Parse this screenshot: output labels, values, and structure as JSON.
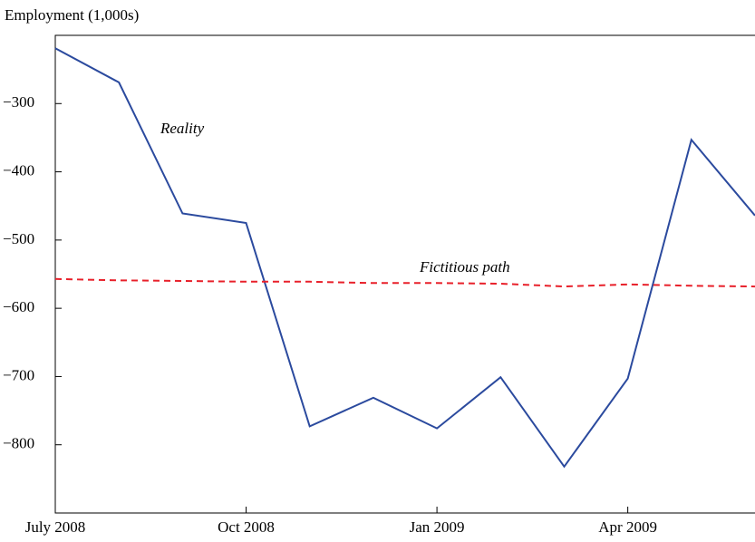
{
  "chart_data": {
    "type": "line",
    "y_axis_label": "Employment (1,000s)",
    "categories": [
      "July 2008",
      null,
      null,
      "Oct 2008",
      null,
      null,
      "Jan 2009",
      null,
      null,
      "Apr 2009",
      null,
      null
    ],
    "series": [
      {
        "name": "Reality",
        "color": "#2b4a9e",
        "dashed": false,
        "values": [
          -219,
          -269,
          -461,
          -475,
          -773,
          -731,
          -776,
          -701,
          -832,
          -703,
          -353,
          -464
        ]
      },
      {
        "name": "Fictitious path",
        "color": "#e8202a",
        "dashed": true,
        "values": [
          -557,
          -559,
          -560,
          -561,
          -561,
          -563,
          -563,
          -564,
          -568,
          -565,
          -567,
          -568
        ]
      }
    ],
    "ylim": [
      -900,
      -200
    ],
    "yticks": [
      {
        "value": -300,
        "label": "−300"
      },
      {
        "value": -400,
        "label": "−400"
      },
      {
        "value": -500,
        "label": "−500"
      },
      {
        "value": -600,
        "label": "−600"
      },
      {
        "value": -700,
        "label": "−700"
      },
      {
        "value": -800,
        "label": "−800"
      }
    ],
    "grid": false
  }
}
